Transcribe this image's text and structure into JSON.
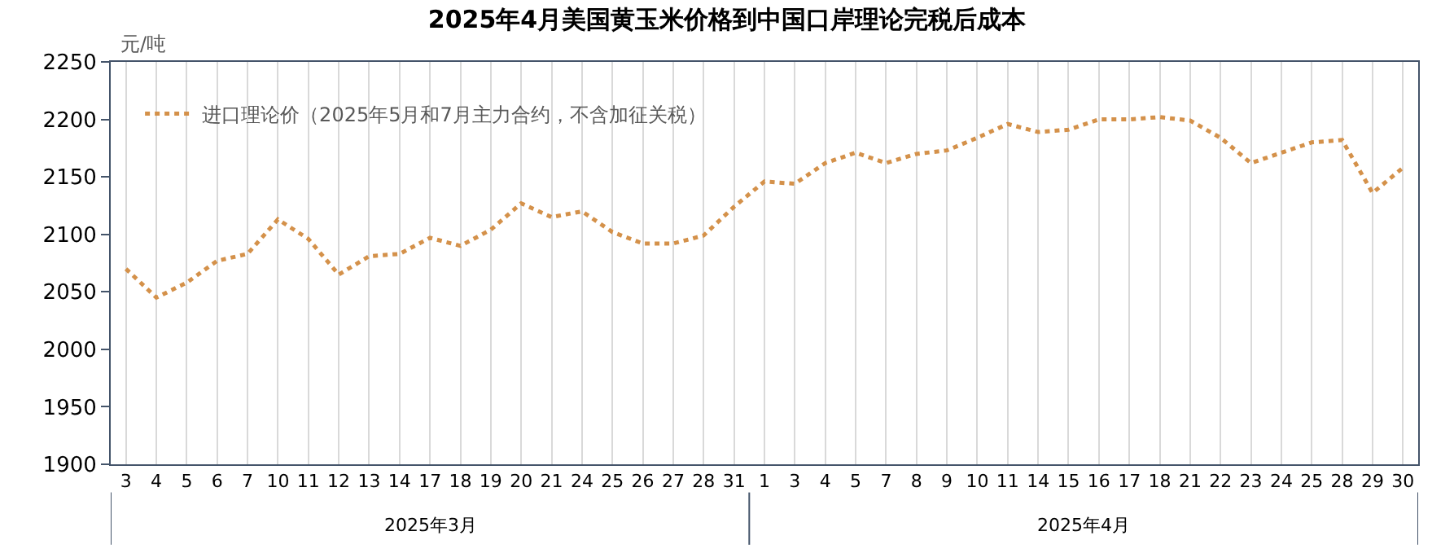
{
  "chart_data": {
    "type": "line",
    "title": "2025年4月美国黄玉米价格到中国口岸理论完税后成本",
    "ylabel": "元/吨",
    "categories": [
      "3",
      "4",
      "5",
      "6",
      "7",
      "10",
      "11",
      "12",
      "13",
      "14",
      "17",
      "18",
      "19",
      "20",
      "21",
      "24",
      "25",
      "26",
      "27",
      "28",
      "31",
      "1",
      "3",
      "4",
      "5",
      "7",
      "8",
      "9",
      "10",
      "11",
      "14",
      "15",
      "16",
      "17",
      "18",
      "21",
      "22",
      "23",
      "24",
      "25",
      "28",
      "29",
      "30"
    ],
    "annotations": [
      "2025年3月",
      "2025年4月"
    ],
    "series": [
      {
        "name": "进口理论价（2025年5月和7月主力合约，不含加征关税）",
        "color": "#d4914a",
        "values": [
          2070,
          2045,
          2058,
          2077,
          2083,
          2113,
          2096,
          2065,
          2081,
          2083,
          2097,
          2090,
          2104,
          2127,
          2115,
          2120,
          2102,
          2092,
          2092,
          2099,
          2124,
          2146,
          2144,
          2162,
          2171,
          2162,
          2170,
          2173,
          2184,
          2196,
          2189,
          2191,
          2200,
          2200,
          2202,
          2199,
          2184,
          2162,
          2171,
          2180,
          2182,
          2136,
          2158
        ]
      }
    ],
    "ylim": [
      1900,
      2250
    ],
    "yticks": [
      1900,
      1950,
      2000,
      2050,
      2100,
      2150,
      2200,
      2250
    ],
    "grid": "x",
    "legend": "top left",
    "marker": "none",
    "line_style": "dotted"
  }
}
